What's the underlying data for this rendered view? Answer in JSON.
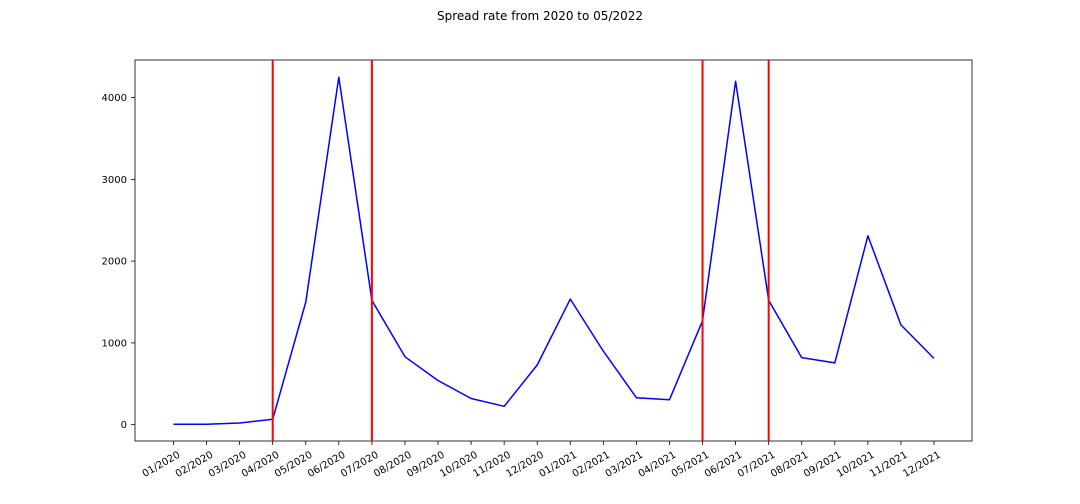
{
  "chart_data": {
    "type": "line",
    "title": "Spread rate from 2020 to 05/2022",
    "xlabel": "",
    "ylabel": "",
    "categories": [
      "01/2020",
      "02/2020",
      "03/2020",
      "04/2020",
      "05/2020",
      "06/2020",
      "07/2020",
      "08/2020",
      "09/2020",
      "10/2020",
      "11/2020",
      "12/2020",
      "01/2021",
      "02/2021",
      "03/2021",
      "04/2021",
      "05/2021",
      "06/2021",
      "07/2021",
      "08/2021",
      "09/2021",
      "10/2021",
      "11/2021",
      "12/2021"
    ],
    "series": [
      {
        "color": "#0000ff",
        "values": [
          5,
          5,
          20,
          65,
          1500,
          4250,
          1520,
          830,
          540,
          320,
          225,
          730,
          1535,
          900,
          330,
          305,
          1270,
          4200,
          1520,
          820,
          755,
          2310,
          1220,
          810
        ]
      }
    ],
    "vlines": {
      "color": "#ff0000",
      "at": [
        "04/2020",
        "07/2020",
        "05/2021",
        "07/2021"
      ]
    },
    "yticks": [
      0,
      1000,
      2000,
      3000,
      4000
    ],
    "ylim": [
      -200,
      4460
    ],
    "grid": false
  }
}
